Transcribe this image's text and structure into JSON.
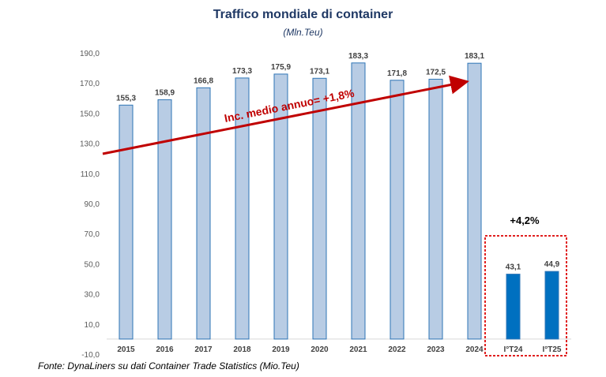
{
  "chart_data": {
    "type": "bar",
    "title": "Traffico mondiale di container",
    "subtitle": "(Mln.Teu)",
    "categories": [
      "2015",
      "2016",
      "2017",
      "2018",
      "2019",
      "2020",
      "2021",
      "2022",
      "2023",
      "2024",
      "I°T24",
      "I°T25"
    ],
    "values": [
      155.3,
      158.9,
      166.8,
      173.3,
      175.9,
      173.1,
      183.3,
      171.8,
      172.5,
      183.1,
      43.1,
      44.9
    ],
    "data_labels": [
      "155,3",
      "158,9",
      "166,8",
      "173,3",
      "175,9",
      "173,1",
      "183,3",
      "171,8",
      "172,5",
      "183,1",
      "43,1",
      "44,9"
    ],
    "yticks": [
      -10,
      10,
      30,
      50,
      70,
      90,
      110,
      130,
      150,
      170,
      190
    ],
    "ytick_labels": [
      "-10,0",
      "10,0",
      "30,0",
      "50,0",
      "70,0",
      "90,0",
      "110,0",
      "130,0",
      "150,0",
      "170,0",
      "190,0"
    ],
    "ylim": [
      -10,
      190
    ],
    "grid": false,
    "colors": {
      "annual_bar": "#b8cce4",
      "annual_bar_border": "#2e75b6",
      "quarter_bar": "#0070c0",
      "trend": "#c00000",
      "highlight_box": "#e02020"
    },
    "annotations": {
      "trend_label": "Inc. medio annuo= +1,8%",
      "growth_label": "+4,2%"
    }
  },
  "source": "Fonte: DynaLiners su dati  Container Trade Statistics (Mio.Teu)"
}
